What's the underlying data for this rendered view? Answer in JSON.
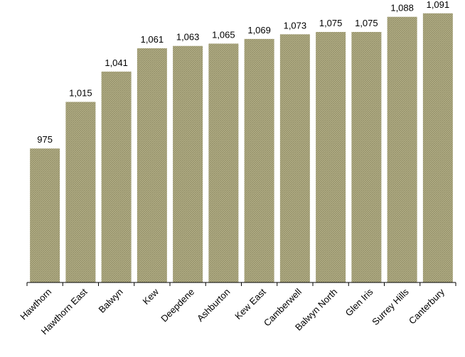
{
  "chart_data": {
    "type": "bar",
    "categories": [
      "Hawthorn",
      "Hawthorn East",
      "Balwyn",
      "Kew",
      "Deepdene",
      "Ashburton",
      "Kew East",
      "Camberwell",
      "Balwyn North",
      "Glen Iris",
      "Surrey Hills",
      "Canterbury"
    ],
    "values": [
      975,
      1015,
      1041,
      1061,
      1063,
      1065,
      1069,
      1073,
      1075,
      1075,
      1088,
      1091
    ],
    "data_labels": [
      "975",
      "1,015",
      "1,041",
      "1,061",
      "1,063",
      "1,065",
      "1,069",
      "1,073",
      "1,075",
      "1,075",
      "1,088",
      "1,091"
    ],
    "title": "",
    "xlabel": "",
    "ylabel": "",
    "ylim": [
      860,
      1100
    ],
    "grid": false,
    "legend": "none",
    "bar_color": "#b4b088",
    "bar_hatch_color": "#8f8b64",
    "axis_color": "#000000"
  }
}
